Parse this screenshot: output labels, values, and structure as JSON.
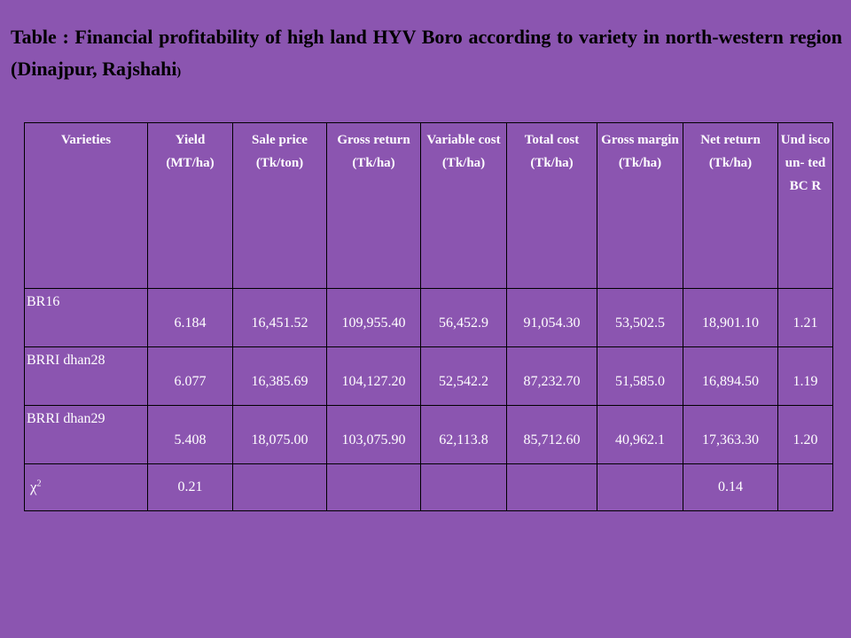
{
  "title": {
    "main": "Table : Financial profitability of high land HYV Boro according to variety in north-western region (Dinajpur, Rajshahi",
    "tail": ")"
  },
  "table": {
    "headers": [
      "Varieties",
      "Yield (MT/ha)",
      "Sale price (Tk/ton)",
      "Gross return (Tk/ha)",
      "Variable cost (Tk/ha)",
      "Total cost (Tk/ha)",
      "Gross margin (Tk/ha)",
      "Net return (Tk/ha)",
      "Und isco un- ted BC R"
    ],
    "rows": [
      {
        "name": "BR16",
        "values": [
          "6.184",
          "16,451.52",
          "109,955.40",
          "56,452.9",
          "91,054.30",
          "53,502.5",
          "18,901.10",
          "1.21"
        ]
      },
      {
        "name": "BRRI dhan28",
        "values": [
          "6.077",
          "16,385.69",
          "104,127.20",
          "52,542.2",
          "87,232.70",
          "51,585.0",
          "16,894.50",
          "1.19"
        ]
      },
      {
        "name": "BRRI dhan29",
        "values": [
          "5.408",
          "18,075.00",
          "103,075.90",
          "62,113.8",
          "85,712.60",
          "40,962.1",
          "17,363.30",
          "1.20"
        ]
      }
    ],
    "chi": {
      "symbol": "χ",
      "superscript": "2",
      "values": [
        "0.21",
        "",
        "",
        "",
        "",
        "",
        "0.14",
        ""
      ]
    }
  }
}
